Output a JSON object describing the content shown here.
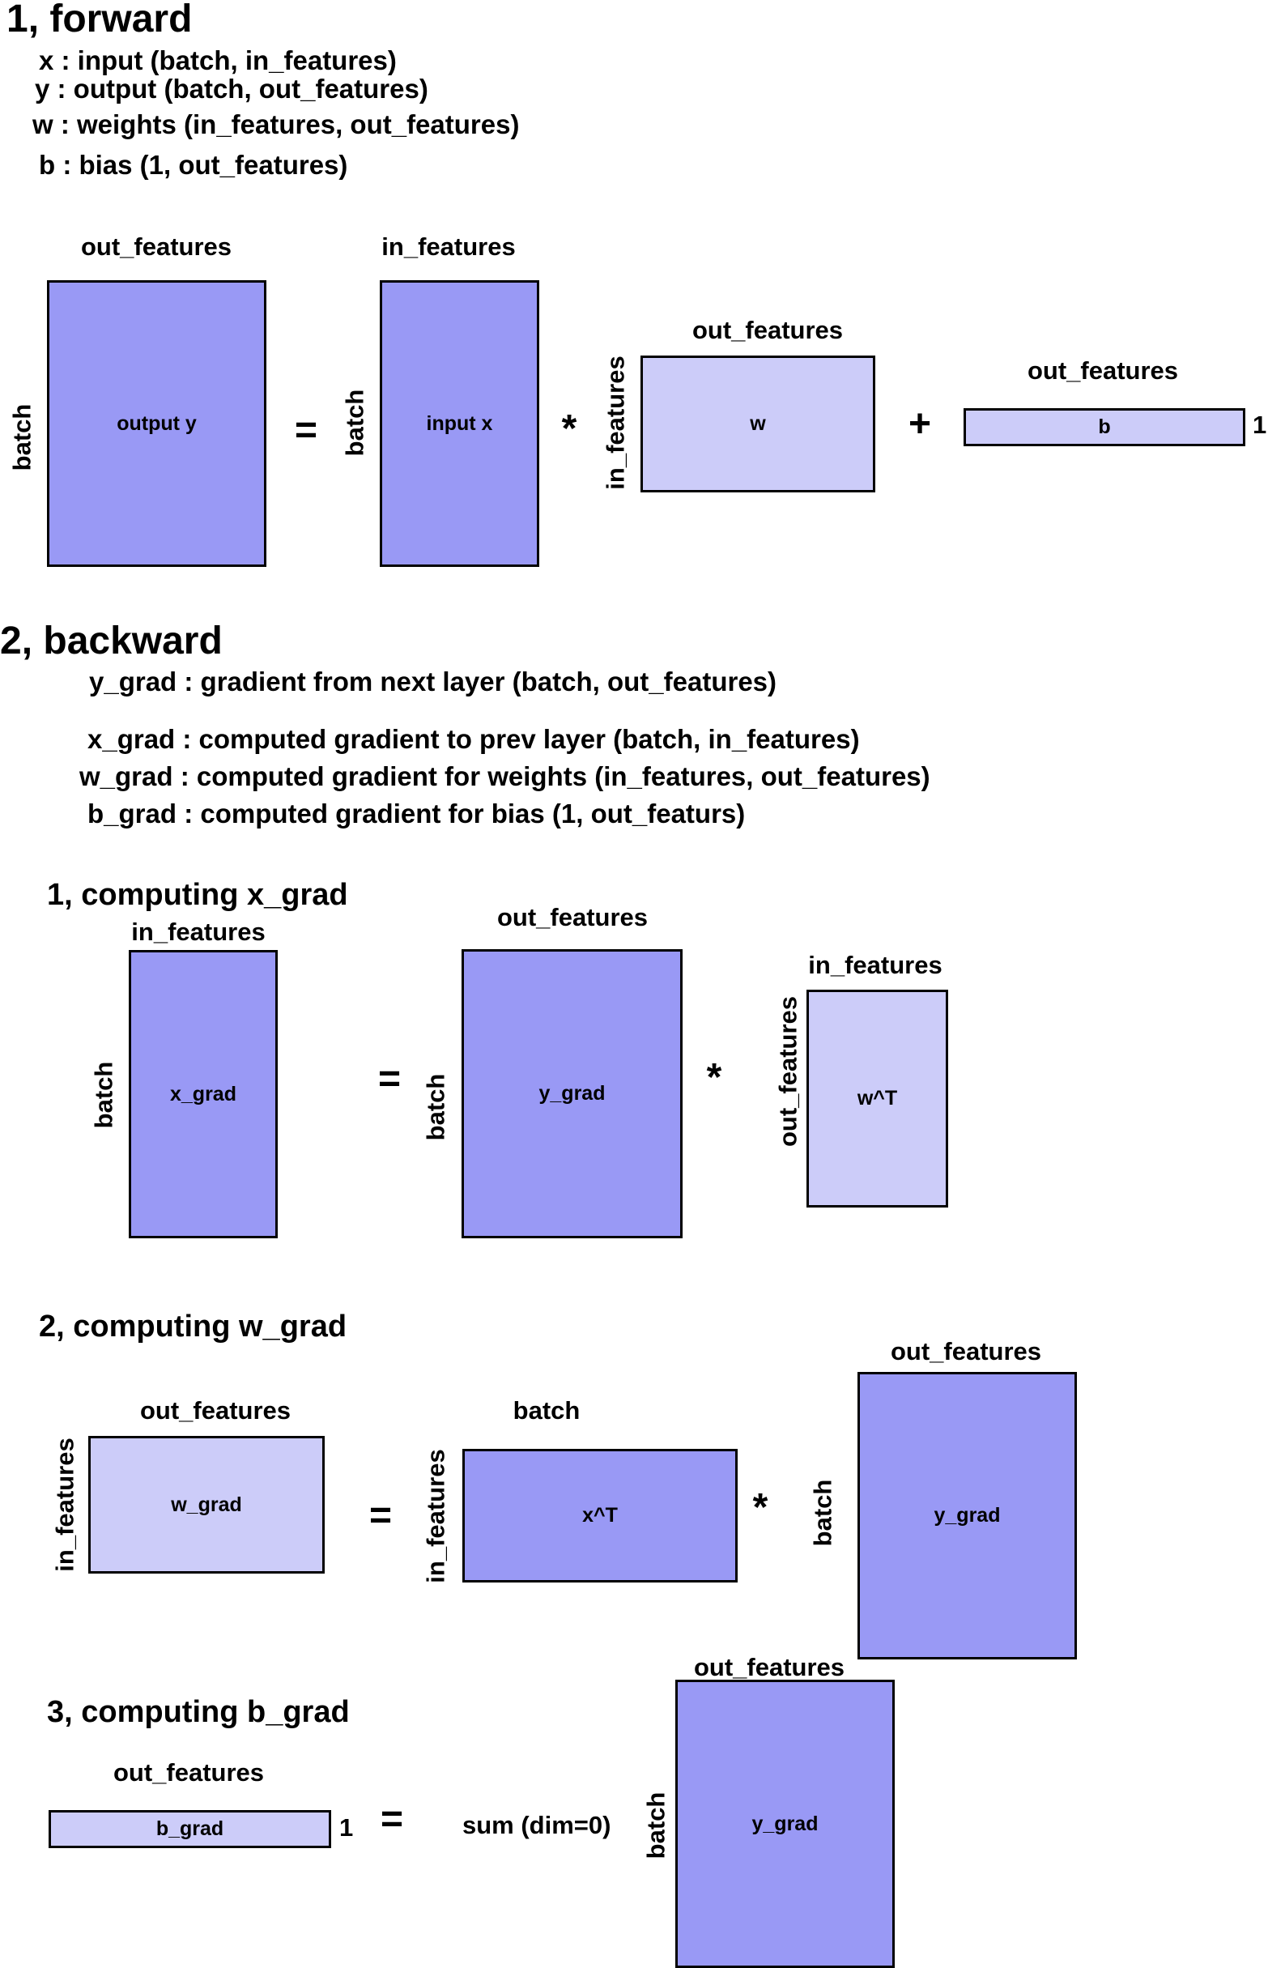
{
  "forward": {
    "title": "1, forward",
    "defs": [
      "x : input (batch, in_features)",
      "y : output (batch, out_features)",
      "w : weights (in_features, out_features)",
      "b : bias (1, out_features)"
    ],
    "labels": {
      "y_top": "out_features",
      "y_side": "batch",
      "y_name": "output y",
      "eq": "=",
      "x_top": "in_features",
      "x_side": "batch",
      "x_name": "input x",
      "mul": "*",
      "w_top": "out_features",
      "w_side": "in_features",
      "w_name": "w",
      "plus": "+",
      "b_top": "out_features",
      "b_name": "b",
      "b_one": "1"
    }
  },
  "backward": {
    "title": "2, backward",
    "defs": [
      "y_grad : gradient from next layer (batch, out_features)",
      "x_grad : computed gradient to prev layer (batch, in_features)",
      "w_grad : computed gradient for weights (in_features, out_features)",
      "b_grad : computed gradient for bias (1, out_featurs)"
    ],
    "xgrad": {
      "title": "1, computing x_grad",
      "xg_top": "in_features",
      "xg_side": "batch",
      "xg_name": "x_grad",
      "eq": "=",
      "yg_top": "out_features",
      "yg_side": "batch",
      "yg_name": "y_grad",
      "mul": "*",
      "wt_top": "in_features",
      "wt_side": "out_features",
      "wt_name": "w^T"
    },
    "wgrad": {
      "title": "2, computing w_grad",
      "wg_top": "out_features",
      "wg_side": "in_features",
      "wg_name": "w_grad",
      "eq": "=",
      "xt_top": "batch",
      "xt_side": "in_features",
      "xt_name": "x^T",
      "mul": "*",
      "yg_top": "out_features",
      "yg_side": "batch",
      "yg_name": "y_grad"
    },
    "bgrad": {
      "title": "3, computing b_grad",
      "bg_top": "out_features",
      "bg_name": "b_grad",
      "bg_one": "1",
      "eq": "=",
      "sum": "sum (dim=0)",
      "yg_top": "out_features",
      "yg_side": "batch",
      "yg_name": "y_grad"
    }
  }
}
